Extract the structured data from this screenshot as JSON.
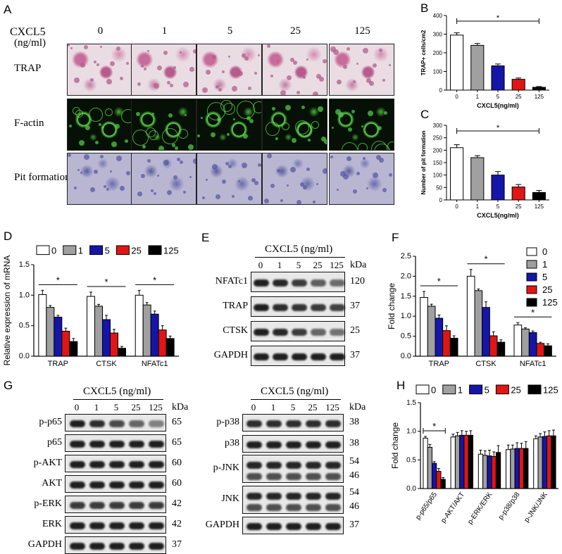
{
  "panels": {
    "A": {
      "label": "A",
      "dose_label": "CXCL5",
      "dose_unit": "(ng/ml)",
      "doses": [
        "0",
        "1",
        "5",
        "25",
        "125"
      ],
      "rows": [
        "TRAP",
        "F-actin",
        "Pit formation"
      ]
    },
    "B": {
      "label": "B"
    },
    "C": {
      "label": "C"
    },
    "D": {
      "label": "D"
    },
    "E": {
      "label": "E",
      "header": "CXCL5 (ng/ml)",
      "lanes": [
        "0",
        "1",
        "5",
        "25",
        "125"
      ],
      "kda_label": "kDa",
      "bands": [
        {
          "name": "NFATc1",
          "kda": "120",
          "levels": [
            1,
            0.95,
            0.8,
            0.55,
            0.45
          ]
        },
        {
          "name": "TRAP",
          "kda": "37",
          "levels": [
            1,
            0.9,
            0.85,
            0.8,
            0.75
          ]
        },
        {
          "name": "CTSK",
          "kda": "25",
          "levels": [
            1,
            0.95,
            0.8,
            0.5,
            0.4
          ]
        },
        {
          "name": "GAPDH",
          "kda": "37",
          "levels": [
            1,
            1,
            1,
            1,
            1
          ]
        }
      ]
    },
    "F": {
      "label": "F"
    },
    "G": {
      "label": "G",
      "header": "CXCL5 (ng/ml)",
      "lanes": [
        "0",
        "1",
        "5",
        "25",
        "125"
      ],
      "kda_label": "kDa",
      "left_bands": [
        {
          "name": "p-p65",
          "kda": "65",
          "levels": [
            1,
            0.9,
            0.7,
            0.5,
            0.3
          ]
        },
        {
          "name": "p65",
          "kda": "65",
          "levels": [
            1,
            1,
            1,
            1,
            1
          ]
        },
        {
          "name": "p-AKT",
          "kda": "60",
          "levels": [
            1,
            1,
            1,
            1,
            1
          ]
        },
        {
          "name": "AKT",
          "kda": "60",
          "levels": [
            1,
            1,
            1,
            1,
            1
          ]
        },
        {
          "name": "p-ERK",
          "kda": "42",
          "levels": [
            0.8,
            0.8,
            0.8,
            0.8,
            0.8
          ]
        },
        {
          "name": "ERK",
          "kda": "42",
          "levels": [
            1,
            1,
            1,
            1,
            1
          ]
        },
        {
          "name": "GAPDH",
          "kda": "37",
          "levels": [
            1,
            1,
            1,
            1,
            1
          ]
        }
      ],
      "right_bands": [
        {
          "name": "p-p38",
          "kda": "38",
          "levels": [
            0.9,
            0.9,
            0.9,
            0.9,
            0.9
          ]
        },
        {
          "name": "p38",
          "kda": "38",
          "levels": [
            1,
            1,
            1,
            1,
            1
          ]
        },
        {
          "name": "p-JNK",
          "kda1": "54",
          "kda2": "46",
          "levels": [
            1,
            1,
            1,
            1,
            1
          ]
        },
        {
          "name": "JNK",
          "kda1": "54",
          "kda2": "46",
          "levels": [
            1,
            1,
            1,
            1,
            1
          ]
        },
        {
          "name": "GAPDH",
          "kda": "37",
          "levels": [
            1,
            1,
            1,
            1,
            1
          ]
        }
      ]
    },
    "H": {
      "label": "H"
    }
  },
  "chart_data": [
    {
      "id": "B",
      "type": "bar",
      "categories": [
        "0",
        "1",
        "5",
        "25",
        "125"
      ],
      "values": [
        295,
        240,
        130,
        58,
        15
      ],
      "errors": [
        12,
        10,
        10,
        7,
        4
      ],
      "colors": [
        "#ffffff",
        "#a0a0a0",
        "#1515a8",
        "#e01515",
        "#000000"
      ],
      "xlabel": "CXCL5(ng/ml)",
      "ylabel": "TRAP+ cells/cm2",
      "ylim": [
        0,
        400
      ],
      "yticks": [
        "0",
        "100",
        "200",
        "300",
        "400"
      ],
      "sig": "*"
    },
    {
      "id": "C",
      "type": "bar",
      "categories": [
        "0",
        "1",
        "5",
        "25",
        "125"
      ],
      "values": [
        210,
        170,
        100,
        52,
        30
      ],
      "errors": [
        12,
        8,
        14,
        10,
        8
      ],
      "colors": [
        "#ffffff",
        "#a0a0a0",
        "#1515a8",
        "#e01515",
        "#000000"
      ],
      "xlabel": "CXCL5(ng/ml)",
      "ylabel": "Number of pit formation",
      "ylim": [
        0,
        300
      ],
      "yticks": [
        "0",
        "50",
        "100",
        "150",
        "200",
        "250",
        "300"
      ],
      "sig": "*"
    },
    {
      "id": "D",
      "type": "bar",
      "categories": [
        "TRAP",
        "CTSK",
        "NFATc1"
      ],
      "series": [
        {
          "name": "0",
          "values": [
            1.01,
            0.98,
            1.0
          ],
          "errors": [
            0.07,
            0.07,
            0.08
          ]
        },
        {
          "name": "1",
          "values": [
            0.8,
            0.82,
            0.84
          ],
          "errors": [
            0.03,
            0.03,
            0.04
          ]
        },
        {
          "name": "5",
          "values": [
            0.64,
            0.6,
            0.69
          ],
          "errors": [
            0.03,
            0.07,
            0.05
          ]
        },
        {
          "name": "25",
          "values": [
            0.41,
            0.38,
            0.43
          ],
          "errors": [
            0.05,
            0.06,
            0.07
          ]
        },
        {
          "name": "125",
          "values": [
            0.24,
            0.13,
            0.29
          ],
          "errors": [
            0.05,
            0.03,
            0.04
          ]
        }
      ],
      "colors": [
        "#ffffff",
        "#a0a0a0",
        "#1515a8",
        "#e01515",
        "#000000"
      ],
      "ylabel": "Relative expression of mRNA",
      "ylim": [
        0,
        1.5
      ],
      "yticks": [
        "0.0",
        "0.5",
        "1.0",
        "1.5"
      ],
      "sig": "*",
      "legend": "top"
    },
    {
      "id": "F",
      "type": "bar",
      "categories": [
        "TRAP",
        "CTSK",
        "NFATc1"
      ],
      "series": [
        {
          "name": "0",
          "values": [
            1.47,
            2.0,
            0.78
          ],
          "errors": [
            0.15,
            0.17,
            0.06
          ]
        },
        {
          "name": "1",
          "values": [
            1.25,
            1.64,
            0.68
          ],
          "errors": [
            0.05,
            0.04,
            0.03
          ]
        },
        {
          "name": "5",
          "values": [
            0.95,
            1.22,
            0.59
          ],
          "errors": [
            0.08,
            0.14,
            0.04
          ]
        },
        {
          "name": "25",
          "values": [
            0.64,
            0.51,
            0.32
          ],
          "errors": [
            0.12,
            0.1,
            0.03
          ]
        },
        {
          "name": "125",
          "values": [
            0.45,
            0.35,
            0.26
          ],
          "errors": [
            0.06,
            0.06,
            0.05
          ]
        }
      ],
      "colors": [
        "#ffffff",
        "#a0a0a0",
        "#1515a8",
        "#e01515",
        "#000000"
      ],
      "ylabel": "Fold change",
      "ylim": [
        0,
        2.5
      ],
      "yticks": [
        "0.0",
        "0.5",
        "1.0",
        "1.5",
        "2.0",
        "2.5"
      ],
      "sig": "*",
      "legend": "right"
    },
    {
      "id": "H",
      "type": "bar",
      "categories": [
        "p-p65/p65",
        "p-AKT/AKT",
        "p-ERK/ERK",
        "p-p38/p38",
        "p-JNK/JNK"
      ],
      "series": [
        {
          "name": "0",
          "values": [
            0.88,
            0.9,
            0.6,
            0.68,
            0.87
          ],
          "errors": [
            0.03,
            0.05,
            0.07,
            0.08,
            0.05
          ]
        },
        {
          "name": "1",
          "values": [
            0.72,
            0.92,
            0.58,
            0.69,
            0.9
          ],
          "errors": [
            0.05,
            0.06,
            0.08,
            0.07,
            0.06
          ]
        },
        {
          "name": "5",
          "values": [
            0.44,
            0.93,
            0.57,
            0.7,
            0.91
          ],
          "errors": [
            0.03,
            0.08,
            0.1,
            0.1,
            0.08
          ]
        },
        {
          "name": "25",
          "values": [
            0.3,
            0.93,
            0.56,
            0.7,
            0.92
          ],
          "errors": [
            0.05,
            0.07,
            0.08,
            0.09,
            0.09
          ]
        },
        {
          "name": "125",
          "values": [
            0.16,
            0.93,
            0.63,
            0.7,
            0.92
          ],
          "errors": [
            0.03,
            0.08,
            0.12,
            0.12,
            0.1
          ]
        }
      ],
      "colors": [
        "#ffffff",
        "#a0a0a0",
        "#1515a8",
        "#e01515",
        "#000000"
      ],
      "ylabel": "Fold change",
      "ylim": [
        0,
        1.5
      ],
      "yticks": [
        "0.0",
        "0.5",
        "1.0",
        "1.5"
      ],
      "sig": "*",
      "legend": "top"
    }
  ]
}
